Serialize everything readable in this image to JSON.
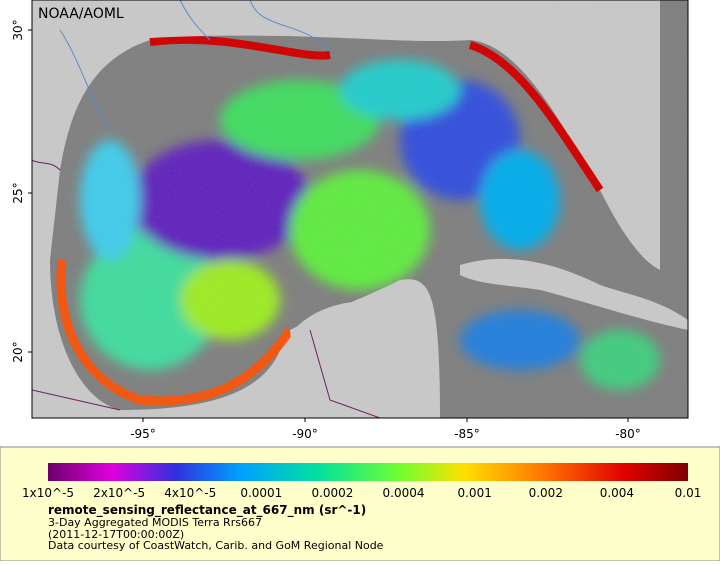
{
  "map": {
    "credit": "NOAA/AOML",
    "lat_labels": [
      "30°",
      "25°",
      "20°"
    ],
    "lon_labels": [
      "-95°",
      "-90°",
      "-85°",
      "-80°"
    ]
  },
  "colorbar": {
    "labels": [
      "1x10^-5",
      "2x10^-5",
      "4x10^-5",
      "0.0001",
      "0.0002",
      "0.0004",
      "0.001",
      "0.002",
      "0.004",
      "0.01"
    ]
  },
  "caption": {
    "title": "remote_sensing_reflectance_at_667_nm (sr^-1)",
    "lines": [
      "3-Day Aggregated MODIS Terra Rrs667",
      "(2011-12-17T00:00:00Z)",
      "Data courtesy of CoastWatch, Carib. and GoM Regional Node"
    ]
  }
}
